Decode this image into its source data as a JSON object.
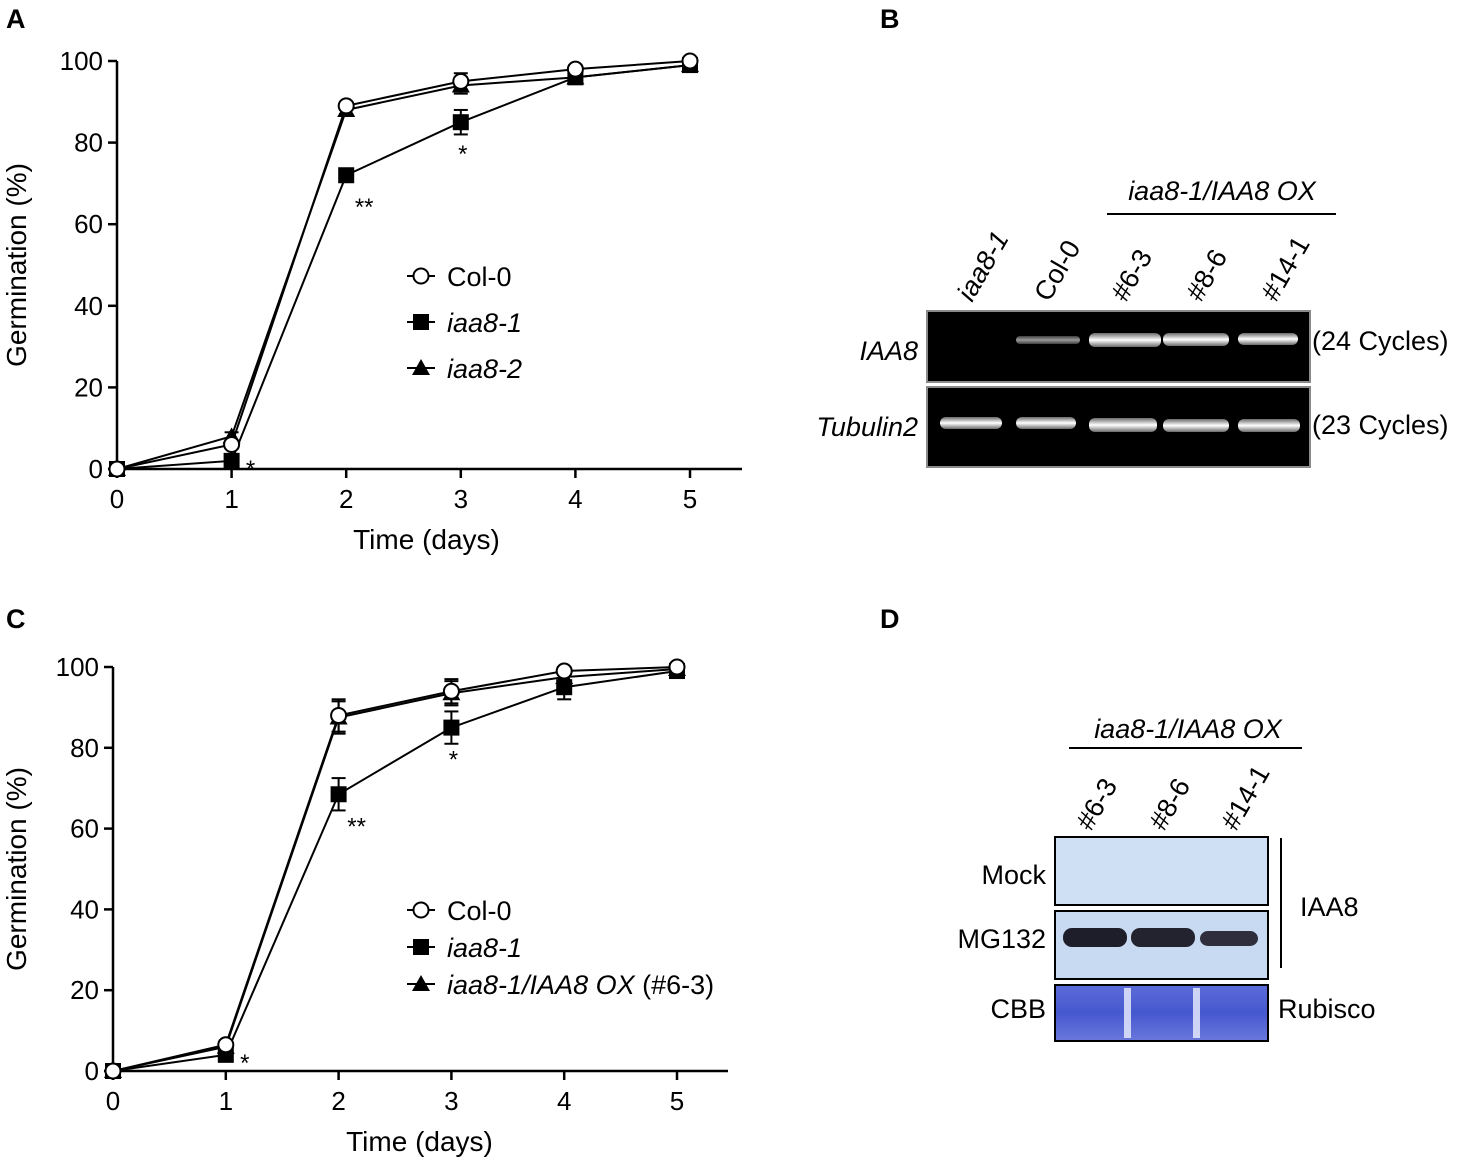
{
  "panels": {
    "A": "A",
    "B": "B",
    "C": "C",
    "D": "D"
  },
  "chart_data": [
    {
      "panel": "A",
      "type": "line",
      "xlabel": "Time (days)",
      "ylabel": "Germination (%)",
      "xlim": [
        0,
        5
      ],
      "ylim": [
        0,
        100
      ],
      "xticks": [
        "0",
        "1",
        "2",
        "3",
        "4",
        "5"
      ],
      "yticks": [
        "0",
        "20",
        "40",
        "60",
        "80",
        "100"
      ],
      "legend_position": "center-right",
      "x": [
        0,
        1,
        2,
        3,
        4,
        5
      ],
      "series": [
        {
          "name": "Col-0",
          "marker": "open-circle",
          "values": [
            0,
            6,
            89,
            95,
            98,
            100
          ],
          "err": [
            0,
            1,
            1,
            2,
            1,
            0
          ]
        },
        {
          "name": "iaa8-1",
          "italic": true,
          "marker": "square",
          "values": [
            0,
            2,
            72,
            85,
            96,
            99
          ],
          "err": [
            0,
            0,
            1,
            3,
            1,
            1
          ]
        },
        {
          "name": "iaa8-2",
          "italic": true,
          "marker": "triangle",
          "values": [
            0,
            8,
            88,
            94,
            96,
            99
          ],
          "err": [
            0,
            1,
            1,
            2,
            1,
            1
          ]
        }
      ],
      "annotations": [
        {
          "text": "*",
          "x": 1,
          "series": "iaa8-1"
        },
        {
          "text": "**",
          "x": 2,
          "series": "iaa8-1"
        },
        {
          "text": "*",
          "x": 3,
          "series": "iaa8-1"
        }
      ]
    },
    {
      "panel": "C",
      "type": "line",
      "xlabel": "Time (days)",
      "ylabel": "Germination (%)",
      "xlim": [
        0,
        5
      ],
      "ylim": [
        0,
        100
      ],
      "xticks": [
        "0",
        "1",
        "2",
        "3",
        "4",
        "5"
      ],
      "yticks": [
        "0",
        "20",
        "40",
        "60",
        "80",
        "100"
      ],
      "legend_position": "bottom-right",
      "x": [
        0,
        1,
        2,
        3,
        4,
        5
      ],
      "series": [
        {
          "name": "Col-0",
          "marker": "open-circle",
          "values": [
            0,
            6.5,
            88,
            94,
            99,
            100
          ],
          "err": [
            0,
            1,
            4,
            3,
            1,
            0
          ]
        },
        {
          "name": "iaa8-1",
          "italic": true,
          "marker": "square",
          "values": [
            0,
            4,
            68.5,
            85,
            95,
            99
          ],
          "err": [
            0,
            1,
            4,
            4,
            3,
            1
          ]
        },
        {
          "name": "iaa8-1/IAA8 OX",
          "italic": true,
          "suffix": " (#6-3)",
          "marker": "triangle",
          "values": [
            0,
            6,
            87.5,
            93.5,
            97.5,
            99.5
          ],
          "err": [
            0,
            1,
            4,
            3,
            1,
            0
          ]
        }
      ],
      "annotations": [
        {
          "text": "*",
          "x": 1,
          "series": "iaa8-1"
        },
        {
          "text": "**",
          "x": 2,
          "series": "iaa8-1"
        },
        {
          "text": "*",
          "x": 3,
          "series": "iaa8-1"
        }
      ]
    }
  ],
  "gel_B": {
    "group_label": "iaa8-1/IAA8 OX",
    "lanes": [
      "iaa8-1",
      "Col-0",
      "#6-3",
      "#8-6",
      "#14-1"
    ],
    "rows": [
      {
        "name": "IAA8",
        "cycles": "(24 Cycles)",
        "bands": [
          0,
          0.45,
          1,
          0.95,
          0.9
        ]
      },
      {
        "name": "Tubulin2",
        "cycles": "(23 Cycles)",
        "bands": [
          1,
          1,
          1,
          1,
          1
        ]
      }
    ]
  },
  "blot_D": {
    "group_label": "iaa8-1/IAA8 OX",
    "lanes": [
      "#6-3",
      "#8-6",
      "#14-1"
    ],
    "rows": [
      {
        "name": "Mock",
        "bands": [
          0,
          0,
          0
        ]
      },
      {
        "name": "MG132",
        "bands": [
          1,
          0.95,
          0.75
        ]
      },
      {
        "name": "CBB",
        "bands": [
          1,
          1,
          1
        ]
      }
    ],
    "bracket_label": "IAA8",
    "cbb_label": "Rubisco"
  }
}
